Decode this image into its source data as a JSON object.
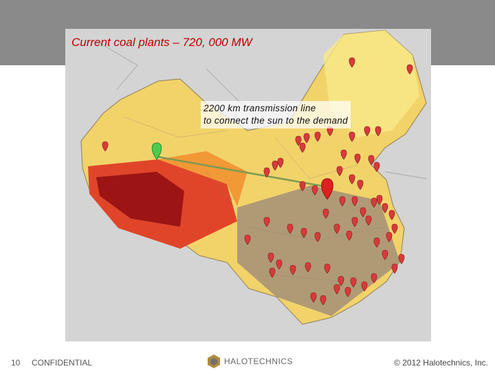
{
  "title": "Current coal plants – 720, 000 MW",
  "annotation": [
    "2200 km transmission line",
    "to connect the sun to the demand"
  ],
  "footer": {
    "page": "10",
    "label": "CONFIDENTIAL",
    "logo": "HALOTECHNICS",
    "copyright": "© 2012 Halotechnics, Inc."
  }
}
